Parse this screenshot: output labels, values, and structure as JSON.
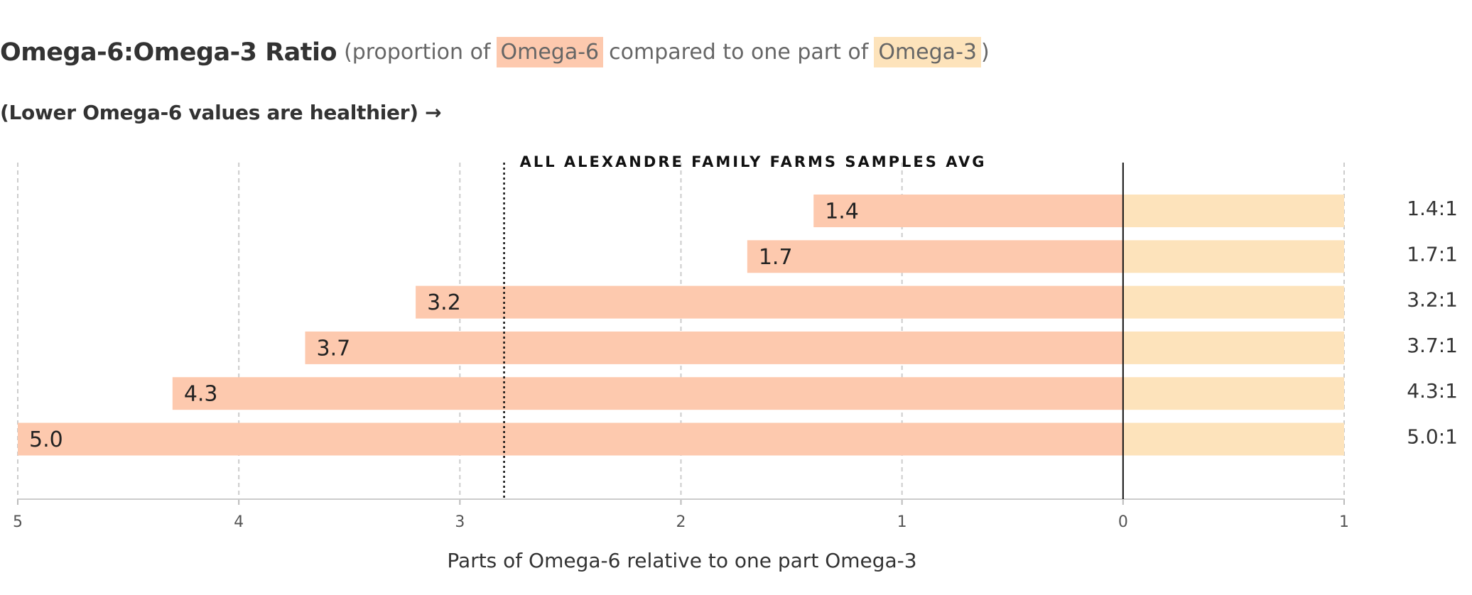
{
  "chart_data": {
    "type": "diverging_bar",
    "title": "Omega-6:Omega-3 Ratio",
    "subtitle_before": "(proportion of",
    "subtitle_middle": "compared to one part of",
    "subtitle_after": ")",
    "note": "(Lower Omega-6 values are healthier) →",
    "categories": [
      "1.4:1",
      "1.7:1",
      "3.2:1",
      "3.7:1",
      "4.3:1",
      "5.0:1"
    ],
    "series": [
      {
        "name": "Omega-6",
        "color": "#fdc9ae",
        "direction": "left",
        "values": [
          1.4,
          1.7,
          3.2,
          3.7,
          4.3,
          5.0
        ],
        "value_labels": [
          "1.4",
          "1.7",
          "3.2",
          "3.7",
          "4.3",
          "5.0"
        ]
      },
      {
        "name": "Omega-3",
        "color": "#fde3bb",
        "direction": "right",
        "values": [
          1,
          1,
          1,
          1,
          1,
          1
        ]
      }
    ],
    "reference_line": {
      "value": 2.8,
      "label": "ALL ALEXANDRE FAMILY FARMS SAMPLES AVG"
    },
    "xlabel": "Parts of Omega-6 relative to one part Omega-3",
    "xlim": [
      -5,
      1
    ],
    "xticks": [
      {
        "value": -5,
        "label": "5"
      },
      {
        "value": -4,
        "label": "4"
      },
      {
        "value": -3,
        "label": "3"
      },
      {
        "value": -2,
        "label": "2"
      },
      {
        "value": -1,
        "label": "1"
      },
      0,
      1
    ],
    "grid": true
  }
}
